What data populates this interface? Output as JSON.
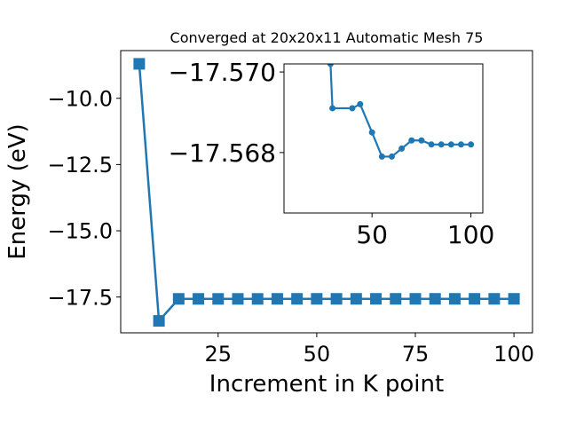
{
  "chart_data": [
    {
      "type": "line",
      "title": "Converged at 20x20x11 Automatic Mesh 75",
      "xlabel": "Increment in K point",
      "ylabel": "Energy (eV)",
      "xlim": [
        0.3,
        104.7
      ],
      "ylim": [
        -18.85,
        -8.2
      ],
      "xticks": [
        25,
        50,
        75,
        100
      ],
      "xtick_labels": [
        "25",
        "50",
        "75",
        "100"
      ],
      "yticks": [
        -17.5,
        -15.0,
        -12.5,
        -10.0
      ],
      "ytick_labels": [
        "−17.5",
        "−15.0",
        "−12.5",
        "−10.0"
      ],
      "grid": false,
      "marker": "square",
      "color": "#1f77b4",
      "series": [
        {
          "x": [
            5,
            10,
            15,
            20,
            25,
            30,
            35,
            40,
            45,
            50,
            55,
            60,
            65,
            70,
            75,
            80,
            85,
            90,
            95,
            100
          ],
          "values": [
            -8.7,
            -18.4,
            -17.569,
            -17.5696,
            -17.5698,
            -17.5698,
            -17.5697,
            -17.5683,
            -17.5679,
            -17.5681,
            -17.5685,
            -17.5678,
            -17.5675,
            -17.568,
            -17.5681,
            -17.5679,
            -17.568,
            -17.5678,
            -17.5679,
            -17.5678
          ]
        }
      ]
    },
    {
      "type": "line",
      "inset": true,
      "xlim": [
        5.5,
        106
      ],
      "ylim": [
        -17.5665,
        -17.5702
      ],
      "xticks": [
        50,
        100
      ],
      "xtick_labels": [
        "50",
        "100"
      ],
      "yticks": [
        -17.57,
        -17.568
      ],
      "ytick_labels": [
        "−17.570",
        "−17.568"
      ],
      "grid": false,
      "marker": "circle",
      "color": "#1f77b4",
      "series": [
        {
          "x": [
            29,
            30,
            40,
            44,
            50,
            55,
            60,
            65,
            70,
            75,
            80,
            85,
            90,
            95,
            100
          ],
          "values": [
            -17.5702,
            -17.5691,
            -17.5691,
            -17.5692,
            -17.5685,
            -17.5679,
            -17.5679,
            -17.5681,
            -17.5683,
            -17.5683,
            -17.5682,
            -17.5682,
            -17.5682,
            -17.5682,
            -17.5682
          ]
        }
      ]
    }
  ]
}
